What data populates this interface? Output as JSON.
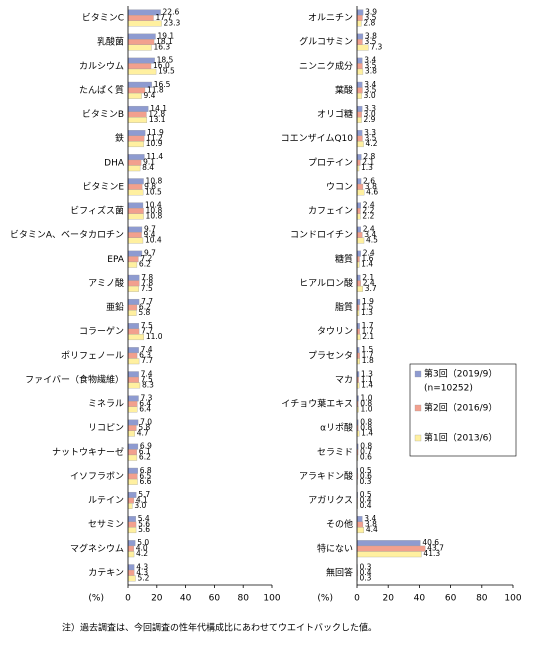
{
  "chart_data": [
    {
      "type": "bar",
      "orientation": "horizontal",
      "xlabel": "(%)",
      "categories": [
        "ビタミンC",
        "乳酸菌",
        "カルシウム",
        "たんぱく質",
        "ビタミンB",
        "鉄",
        "DHA",
        "ビタミンE",
        "ビフィズス菌",
        "ビタミンA、ベータカロチン",
        "EPA",
        "アミノ酸",
        "亜鉛",
        "コラーゲン",
        "ポリフェノール",
        "ファイバー（食物繊維）",
        "ミネラル",
        "リコピン",
        "ナットウキナーゼ",
        "イソフラボン",
        "ルテイン",
        "セサミン",
        "マグネシウム",
        "カテキン"
      ],
      "series": [
        {
          "color": "#8e9bd0",
          "values": [
            22.6,
            19.1,
            18.5,
            16.5,
            14.1,
            11.9,
            11.4,
            10.8,
            10.4,
            9.7,
            9.7,
            7.8,
            7.7,
            7.5,
            7.4,
            7.4,
            7.3,
            7.0,
            6.9,
            6.8,
            5.7,
            5.4,
            5.0,
            4.3
          ],
          "value_labels": [
            "22.6",
            "19.1",
            "18.5",
            "16.5",
            "14.1",
            "11.9",
            "11.4",
            "10.8",
            "10.4",
            "9.7",
            "9.7",
            "7.8",
            "7.7",
            "7.5",
            "7.4",
            "7.4",
            "7.3",
            "7.0",
            "6.9",
            "6.8",
            "5.7",
            "5.4",
            "5.0",
            "4.3"
          ]
        },
        {
          "color": "#f2a08e",
          "values": [
            17.7,
            18.1,
            16.0,
            11.8,
            12.8,
            11.2,
            9.1,
            9.8,
            10.8,
            9.4,
            7.2,
            7.8,
            6.2,
            7.7,
            6.3,
            7.5,
            6.4,
            5.8,
            6.1,
            6.5,
            4.1,
            5.6,
            4.0,
            4.3
          ],
          "value_labels": [
            "17.7",
            "18.1",
            "16.0",
            "11.8",
            "12.8",
            "11.2",
            "9.1",
            "9.8",
            "10.8",
            "9.4",
            "7.2",
            "7.8",
            "6.2",
            "7.7",
            "6.3",
            "7.5",
            "6.4",
            "5.8",
            "6.1",
            "6.5",
            "4.1",
            "5.6",
            "4.0",
            "4.3"
          ]
        },
        {
          "color": "#fff0a0",
          "values": [
            23.3,
            16.3,
            19.5,
            9.4,
            13.1,
            10.9,
            8.4,
            10.5,
            10.8,
            10.4,
            6.2,
            7.5,
            5.8,
            11.0,
            7.7,
            8.3,
            6.4,
            4.7,
            6.2,
            6.6,
            3.0,
            5.6,
            4.2,
            5.2
          ],
          "value_labels": [
            "23.3",
            "16.3",
            "19.5",
            "9.4",
            "13.1",
            "10.9",
            "8.4",
            "10.5",
            "10.8",
            "10.4",
            "6.2",
            "7.5",
            "5.8",
            "11.0",
            "7.7",
            "8.3",
            "6.4",
            "4.7",
            "6.2",
            "6.6",
            "3.0",
            "5.6",
            "4.2",
            "5.2"
          ]
        }
      ],
      "xlim": [
        0,
        100
      ],
      "xticks": [
        0,
        20,
        40,
        60,
        80,
        100
      ]
    },
    {
      "type": "bar",
      "orientation": "horizontal",
      "xlabel": "(%)",
      "categories": [
        "オルニチン",
        "グルコサミン",
        "ニンニク成分",
        "葉酸",
        "オリゴ糖",
        "コエンザイムQ10",
        "プロテイン",
        "ウコン",
        "カフェイン",
        "コンドロイチン",
        "糖質",
        "ヒアルロン酸",
        "脂質",
        "タウリン",
        "プラセンタ",
        "マカ",
        "イチョウ葉エキス",
        "αリポ酸",
        "セラミド",
        "アラキドン酸",
        "アガリクス",
        "その他",
        "特にない",
        "無回答"
      ],
      "series": [
        {
          "color": "#8e9bd0",
          "values": [
            3.9,
            3.8,
            3.4,
            3.4,
            3.3,
            3.3,
            2.8,
            2.6,
            2.4,
            2.4,
            2.4,
            2.1,
            1.9,
            1.7,
            1.5,
            1.3,
            1.0,
            0.8,
            0.8,
            0.5,
            0.5,
            3.4,
            40.6,
            0.3
          ],
          "value_labels": [
            "3.9",
            "3.8",
            "3.4",
            "3.4",
            "3.3",
            "3.3",
            "2.8",
            "2.6",
            "2.4",
            "2.4",
            "2.4",
            "2.1",
            "1.9",
            "1.7",
            "1.5",
            "1.3",
            "1.0",
            "0.8",
            "0.8",
            "0.5",
            "0.5",
            "3.4",
            "40.6",
            "0.3"
          ]
        },
        {
          "color": "#f2a08e",
          "values": [
            3.5,
            3.5,
            3.5,
            3.5,
            3.0,
            3.5,
            2.1,
            3.8,
            2.2,
            3.4,
            1.6,
            2.4,
            1.5,
            1.7,
            1.7,
            1.1,
            0.8,
            0.8,
            0.7,
            0.6,
            0.4,
            3.8,
            43.7,
            0.4
          ],
          "value_labels": [
            "3.5",
            "3.5",
            "3.5",
            "3.5",
            "3.0",
            "3.5",
            "2.1",
            "3.8",
            "2.2",
            "3.4",
            "1.6",
            "2.4",
            "1.5",
            "1.7",
            "1.7",
            "1.1",
            "0.8",
            "0.8",
            "0.7",
            "0.6",
            "0.4",
            "3.8",
            "43.7",
            "0.4"
          ]
        },
        {
          "color": "#fff0a0",
          "values": [
            2.8,
            7.3,
            3.8,
            3.0,
            2.9,
            4.2,
            1.3,
            4.6,
            2.2,
            4.5,
            1.4,
            3.7,
            1.3,
            2.1,
            1.8,
            1.4,
            1.0,
            1.4,
            0.6,
            0.3,
            0.4,
            4.4,
            41.3,
            0.3
          ],
          "value_labels": [
            "2.8",
            "7.3",
            "3.8",
            "3.0",
            "2.9",
            "4.2",
            "1.3",
            "4.6",
            "2.2",
            "4.5",
            "1.4",
            "3.7",
            "1.3",
            "2.1",
            "1.8",
            "1.4",
            "1.0",
            "1.4",
            "0.6",
            "0.3",
            "0.4",
            "4.4",
            "41.3",
            "0.3"
          ]
        }
      ],
      "xlim": [
        0,
        100
      ],
      "xticks": [
        0,
        20,
        40,
        60,
        80,
        100
      ]
    }
  ],
  "legend": {
    "items": [
      "第3回（2019/9）",
      "第2回（2016/9）",
      "第1回（2013/6）"
    ],
    "sample": "(n=10252)"
  },
  "note": "注）過去調査は、今回調査の性年代構成比にあわせてウエイトバックした値。"
}
